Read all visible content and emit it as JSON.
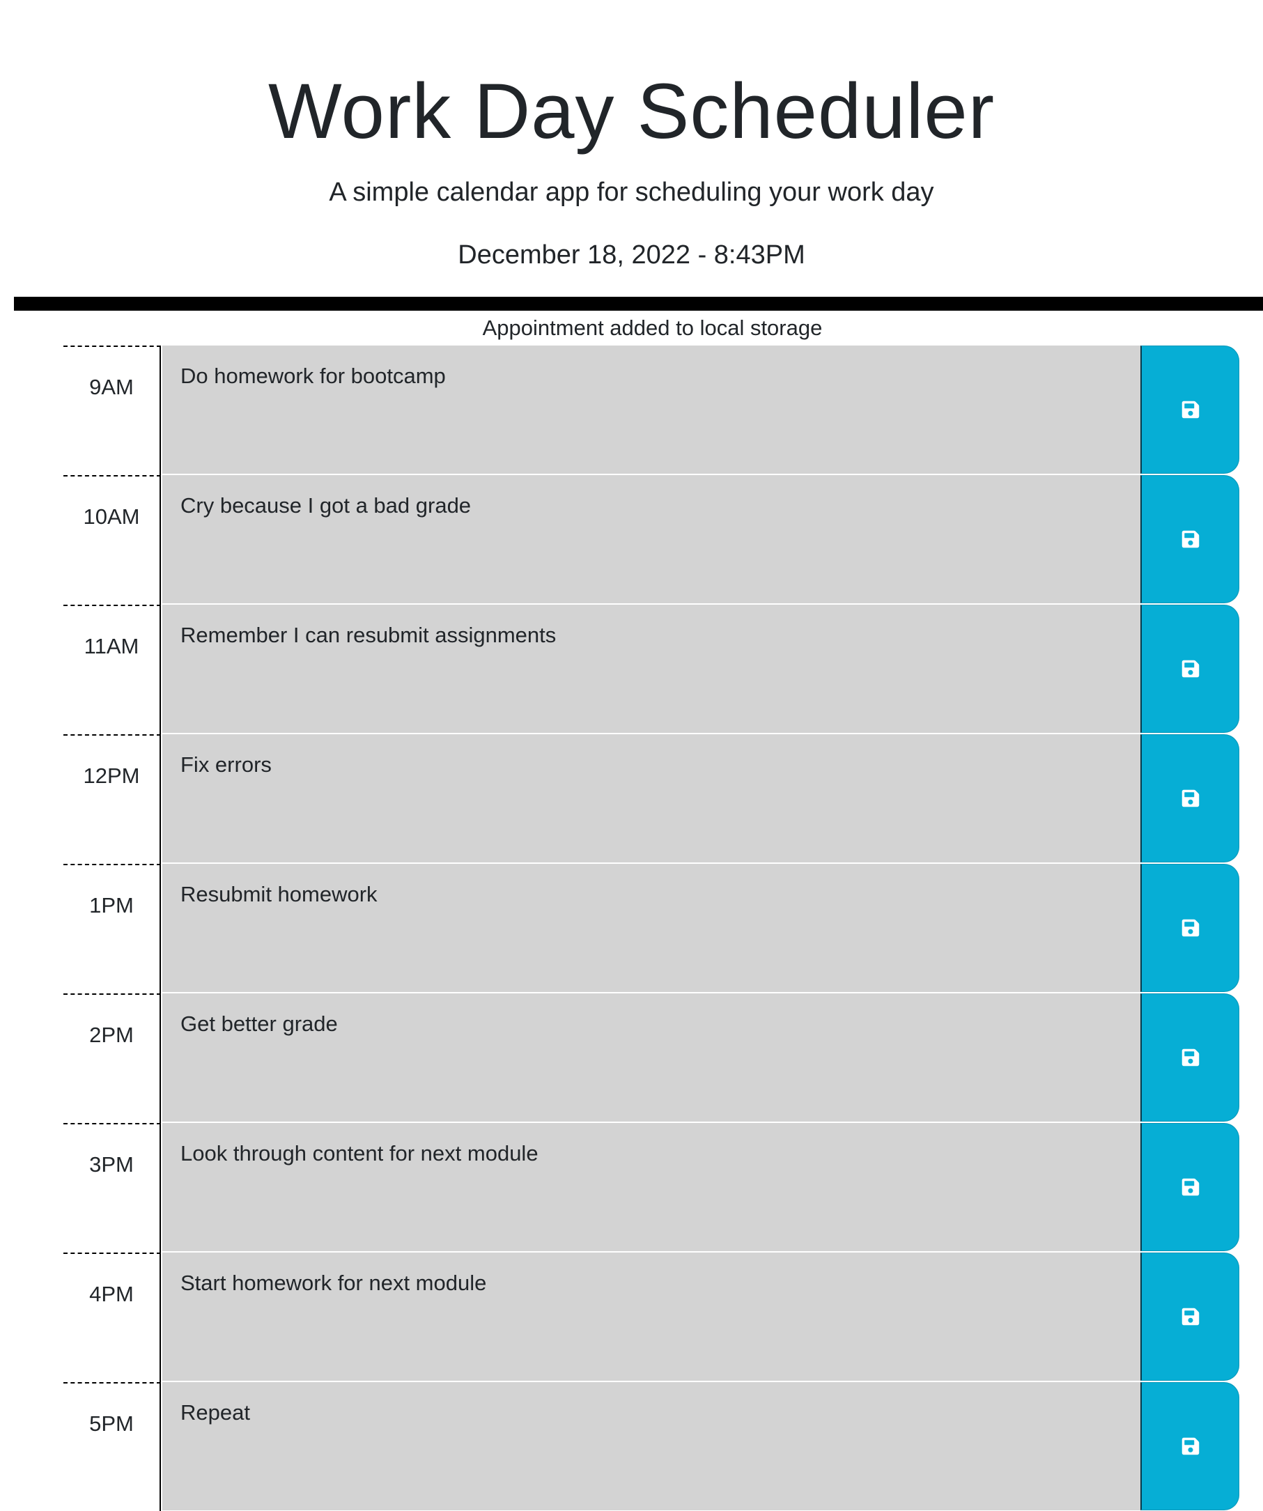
{
  "header": {
    "title": "Work Day Scheduler",
    "subtitle": "A simple calendar app for scheduling your work day",
    "current_day": "December 18, 2022 - 8:43PM"
  },
  "notice": "Appointment added to local storage",
  "colors": {
    "past_block": "#d3d3d3",
    "save_button": "#06aed5",
    "divider": "#000000"
  },
  "save_icon": "floppy-disk-icon",
  "rows": [
    {
      "hour": "9AM",
      "text": "Do homework for bootcamp"
    },
    {
      "hour": "10AM",
      "text": "Cry because I got a bad grade"
    },
    {
      "hour": "11AM",
      "text": "Remember I can resubmit assignments"
    },
    {
      "hour": "12PM",
      "text": "Fix errors"
    },
    {
      "hour": "1PM",
      "text": "Resubmit homework"
    },
    {
      "hour": "2PM",
      "text": "Get better grade"
    },
    {
      "hour": "3PM",
      "text": "Look through content for next module"
    },
    {
      "hour": "4PM",
      "text": "Start homework for next module"
    },
    {
      "hour": "5PM",
      "text": "Repeat"
    }
  ]
}
